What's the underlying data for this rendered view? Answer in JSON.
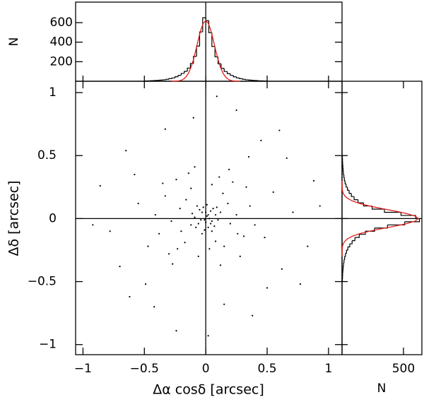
{
  "chart_data": [
    {
      "type": "scatter",
      "xlabel": "Δα cosδ [arcsec]",
      "ylabel": "Δδ [arcsec]",
      "xlim": [
        -1.06,
        1.11
      ],
      "ylim": [
        -1.08,
        1.09
      ],
      "xticks": [
        {
          "value": -1,
          "label": "−1"
        },
        {
          "value": -0.5,
          "label": "−0.5"
        },
        0,
        0.5,
        1
      ],
      "yticks": [
        {
          "value": -1,
          "label": "−1"
        },
        {
          "value": -0.5,
          "label": "−0.5"
        },
        0,
        0.5,
        1
      ],
      "color": "#000000",
      "x": [
        0.01,
        -0.03,
        0.05,
        -0.06,
        0.02,
        0.08,
        -0.02,
        0.04,
        -0.09,
        0.0,
        0.03,
        -0.05,
        0.07,
        -0.01,
        0.06,
        -0.08,
        0.1,
        -0.04,
        0.01,
        -0.11,
        0.09,
        -0.07,
        0.12,
        -0.03,
        0.05,
        0.0,
        -0.12,
        0.02,
        -0.01,
        0.04,
        0.18,
        -0.21,
        0.15,
        -0.17,
        0.25,
        -0.28,
        0.05,
        -0.06,
        0.31,
        -0.33,
        0.22,
        -0.24,
        0.36,
        -0.38,
        0.12,
        -0.14,
        0.28,
        -0.3,
        0.19,
        -0.09,
        0.4,
        -0.41,
        0.33,
        -0.27,
        0.08,
        -0.16,
        0.14,
        -0.2,
        0.26,
        -0.12,
        0.03,
        0.2,
        -0.23,
        0.11,
        -0.35,
        0.55,
        -0.58,
        0.62,
        -0.49,
        0.45,
        -0.33,
        0.71,
        -0.78,
        0.15,
        -0.1,
        0.83,
        -0.65,
        0.38,
        -0.42,
        0.66,
        -0.86,
        0.5,
        0.25,
        -0.24,
        0.88,
        -0.7,
        0.09,
        -0.92,
        0.6,
        0.77,
        -0.55,
        0.48,
        -0.47,
        0.02,
        0.35,
        -0.62,
        0.93
      ],
      "y": [
        0.02,
        0.05,
        -0.02,
        -0.04,
        -0.07,
        0.03,
        0.09,
        0.06,
        0.01,
        -0.03,
        0.0,
        0.07,
        -0.06,
        -0.09,
        0.08,
        -0.07,
        -0.01,
        -0.01,
        0.11,
        0.04,
        0.09,
        0.1,
        0.05,
        -0.12,
        -0.1,
        0.05,
        -0.05,
        0.03,
        -0.01,
        -0.04,
        0.12,
        0.08,
        -0.22,
        -0.19,
        0.03,
        -0.02,
        0.27,
        -0.3,
        -0.14,
        0.18,
        0.29,
        0.31,
        0.1,
        -0.12,
        -0.37,
        0.36,
        -0.3,
        -0.28,
        0.39,
        0.41,
        -0.05,
        0.03,
        0.25,
        -0.36,
        -0.18,
        0.15,
        0.2,
        -0.1,
        -0.12,
        0.24,
        -0.24,
        -0.04,
        -0.24,
        0.33,
        0.28,
        0.21,
        0.35,
        -0.4,
        -0.52,
        0.62,
        0.71,
        0.05,
        -0.1,
        -0.68,
        0.8,
        -0.22,
        0.54,
        -0.77,
        -0.7,
        0.48,
        0.26,
        -0.55,
        0.86,
        -0.89,
        0.3,
        -0.38,
        0.97,
        -0.05,
        0.7,
        -0.52,
        0.12,
        -0.15,
        -0.22,
        -0.93,
        0.49,
        -0.62,
        0.1
      ]
    },
    {
      "type": "histogram",
      "orientation": "vertical",
      "ylabel": "N",
      "xlim": [
        -1.06,
        1.11
      ],
      "ylim": [
        0,
        810
      ],
      "yticks": [
        200,
        400,
        600
      ],
      "color": "#000000",
      "bins": [
        -0.5,
        -0.475,
        -0.45,
        -0.425,
        -0.4,
        -0.375,
        -0.35,
        -0.325,
        -0.3,
        -0.275,
        -0.25,
        -0.225,
        -0.2,
        -0.175,
        -0.15,
        -0.125,
        -0.1,
        -0.075,
        -0.05,
        -0.025,
        0,
        0.025,
        0.05,
        0.075,
        0.1,
        0.125,
        0.15,
        0.175,
        0.2,
        0.225,
        0.25,
        0.275,
        0.3,
        0.325,
        0.35,
        0.375,
        0.4,
        0.425,
        0.45,
        0.475,
        0.5
      ],
      "values": [
        3,
        4,
        6,
        7,
        9,
        12,
        15,
        20,
        27,
        34,
        46,
        61,
        80,
        101,
        135,
        182,
        255,
        360,
        505,
        650,
        620,
        497,
        356,
        250,
        179,
        132,
        100,
        78,
        60,
        45,
        34,
        26,
        20,
        15,
        12,
        9,
        7,
        5,
        4,
        3
      ],
      "fit": {
        "color": "#e0201c",
        "x": [
          -0.28,
          -0.26,
          -0.24,
          -0.22,
          -0.2,
          -0.18,
          -0.16,
          -0.14,
          -0.12,
          -0.1,
          -0.08,
          -0.06,
          -0.04,
          -0.02,
          0,
          0.02,
          0.04,
          0.06,
          0.08,
          0.1,
          0.12,
          0.14,
          0.16,
          0.18,
          0.2,
          0.22,
          0.24,
          0.26,
          0.28
        ],
        "values": [
          0,
          1,
          2,
          4,
          10,
          23,
          46,
          84,
          143,
          223,
          323,
          430,
          527,
          595,
          620,
          595,
          527,
          430,
          323,
          223,
          143,
          84,
          46,
          23,
          10,
          4,
          2,
          1,
          0
        ]
      }
    },
    {
      "type": "histogram",
      "orientation": "horizontal",
      "xlabel": "N",
      "xlim": [
        0,
        650
      ],
      "ylim": [
        -1.08,
        1.09
      ],
      "xticks": [
        500
      ],
      "color": "#000000",
      "bins": [
        -0.5,
        -0.475,
        -0.45,
        -0.425,
        -0.4,
        -0.375,
        -0.35,
        -0.325,
        -0.3,
        -0.275,
        -0.25,
        -0.225,
        -0.2,
        -0.175,
        -0.15,
        -0.125,
        -0.1,
        -0.075,
        -0.05,
        -0.025,
        0,
        0.025,
        0.05,
        0.075,
        0.1,
        0.125,
        0.15,
        0.175,
        0.2,
        0.225,
        0.25,
        0.275,
        0.3,
        0.325,
        0.35,
        0.375,
        0.4,
        0.425,
        0.45,
        0.475,
        0.5
      ],
      "values": [
        3,
        4,
        5,
        7,
        9,
        12,
        16,
        21,
        28,
        36,
        47,
        63,
        82,
        105,
        140,
        190,
        265,
        370,
        510,
        630,
        600,
        480,
        345,
        245,
        175,
        130,
        98,
        76,
        58,
        44,
        33,
        25,
        19,
        15,
        11,
        9,
        7,
        5,
        4,
        3
      ],
      "fit": {
        "color": "#e0201c",
        "x": [
          -0.3,
          -0.28,
          -0.26,
          -0.24,
          -0.22,
          -0.2,
          -0.18,
          -0.16,
          -0.14,
          -0.12,
          -0.1,
          -0.08,
          -0.06,
          -0.04,
          -0.02,
          0,
          0.02,
          0.04,
          0.06,
          0.08,
          0.1,
          0.12,
          0.14,
          0.16,
          0.18,
          0.2,
          0.22,
          0.24,
          0.26,
          0.28,
          0.3
        ],
        "values": [
          0,
          0,
          1,
          2,
          4,
          10,
          23,
          46,
          84,
          143,
          223,
          323,
          430,
          527,
          595,
          620,
          595,
          527,
          430,
          323,
          223,
          143,
          84,
          46,
          23,
          10,
          4,
          2,
          1,
          0,
          0
        ]
      }
    }
  ]
}
